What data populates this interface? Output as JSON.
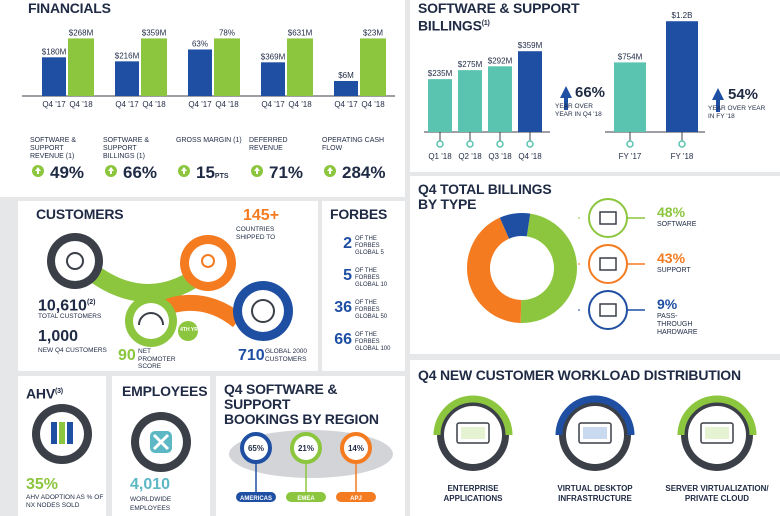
{
  "financials": {
    "title": "FINANCIALS",
    "groups": [
      {
        "name": "SOFTWARE & SUPPORT REVENUE (1)",
        "q4_17_label": "$180M",
        "q4_18_label": "$268M",
        "q4_17": 180,
        "q4_18": 268,
        "growth": "49%",
        "growth_unit": ""
      },
      {
        "name": "SOFTWARE & SUPPORT BILLINGS (1)",
        "q4_17_label": "$216M",
        "q4_18_label": "$359M",
        "q4_17": 216,
        "q4_18": 359,
        "growth": "66%",
        "growth_unit": ""
      },
      {
        "name": "GROSS MARGIN (1)",
        "q4_17_label": "63%",
        "q4_18_label": "78%",
        "q4_17": 63,
        "q4_18": 78,
        "growth": "15",
        "growth_unit": "PTS"
      },
      {
        "name": "DEFERRED REVENUE",
        "q4_17_label": "$369M",
        "q4_18_label": "$631M",
        "q4_17": 369,
        "q4_18": 631,
        "growth": "71%",
        "growth_unit": ""
      },
      {
        "name": "OPERATING CASH FLOW",
        "q4_17_label": "$6M",
        "q4_18_label": "$23M",
        "q4_17": 6,
        "q4_18": 23,
        "growth": "284%",
        "growth_unit": ""
      }
    ],
    "x_labels": [
      "Q4 '17",
      "Q4 '18"
    ]
  },
  "billings": {
    "title_line1": "SOFTWARE & SUPPORT",
    "title_line2": "BILLINGS",
    "title_sup": "(1)",
    "quarters": [
      {
        "label": "Q1 '18",
        "value": 235,
        "value_label": "$235M"
      },
      {
        "label": "Q2 '18",
        "value": 275,
        "value_label": "$275M"
      },
      {
        "label": "Q3 '18",
        "value": 292,
        "value_label": "$292M"
      },
      {
        "label": "Q4 '18",
        "value": 359,
        "value_label": "$359M"
      }
    ],
    "quarter_growth": "66%",
    "quarter_growth_text": "YEAR OVER YEAR IN Q4 '18",
    "years": [
      {
        "label": "FY '17",
        "value": 754,
        "value_label": "$754M"
      },
      {
        "label": "FY '18",
        "value": 1200,
        "value_label": "$1.2B"
      }
    ],
    "year_growth": "54%",
    "year_growth_text": "YEAR OVER YEAR IN FY '18"
  },
  "customers": {
    "title": "CUSTOMERS",
    "countries": "145+",
    "countries_text": "COUNTRIES SHIPPED TO",
    "total": "10,610",
    "total_sup": "(2)",
    "total_text": "TOTAL CUSTOMERS",
    "new": "1,000",
    "new_text": "NEW Q4 CUSTOMERS",
    "nps": "90",
    "nps_text": "NET PROMOTER SCORE",
    "badge": "4th YR",
    "global": "710",
    "global_text": "GLOBAL 2000 CUSTOMERS"
  },
  "forbes": {
    "title": "FORBES",
    "items": [
      {
        "num": "2",
        "text": "OF THE FORBES GLOBAL 5"
      },
      {
        "num": "5",
        "text": "OF THE FORBES GLOBAL 10"
      },
      {
        "num": "36",
        "text": "OF THE FORBES GLOBAL 50"
      },
      {
        "num": "66",
        "text": "OF THE FORBES GLOBAL 100"
      }
    ]
  },
  "billing_type": {
    "title_line1": "Q4 TOTAL BILLINGS",
    "title_line2": "BY TYPE",
    "slices": [
      {
        "name": "SOFTWARE",
        "value": 48,
        "label": "48%",
        "color": "#8cc63f"
      },
      {
        "name": "SUPPORT",
        "value": 43,
        "label": "43%",
        "color": "#f47b20"
      },
      {
        "name": "PASS-THROUGH HARDWARE",
        "value": 9,
        "label": "9%",
        "color": "#1f4fa3"
      }
    ]
  },
  "ahv": {
    "title": "AHV",
    "title_sup": "(3)",
    "pct": "35%",
    "text": "AHV ADOPTION AS % OF NX NODES SOLD"
  },
  "employees": {
    "title": "EMPLOYEES",
    "count": "4,010",
    "text": "WORLDWIDE EMPLOYEES"
  },
  "bookings": {
    "title_line1": "Q4 SOFTWARE & SUPPORT",
    "title_line2": "BOOKINGS BY REGION",
    "regions": [
      {
        "name": "AMERICAS",
        "value": 65,
        "label": "65%",
        "color": "#1f4fa3"
      },
      {
        "name": "EMEA",
        "value": 21,
        "label": "21%",
        "color": "#8cc63f"
      },
      {
        "name": "APJ",
        "value": 14,
        "label": "14%",
        "color": "#f47b20"
      }
    ]
  },
  "workload": {
    "title": "Q4 NEW CUSTOMER WORKLOAD DISTRIBUTION",
    "items": [
      {
        "line1": "ENTERPRISE",
        "line2": "APPLICATIONS",
        "color": "#8cc63f"
      },
      {
        "line1": "VIRTUAL DESKTOP",
        "line2": "INFRASTRUCTURE",
        "color": "#1f4fa3"
      },
      {
        "line1": "SERVER VIRTUALIZATION/",
        "line2": "PRIVATE CLOUD",
        "color": "#8cc63f"
      }
    ]
  },
  "chart_data": [
    {
      "type": "bar",
      "title": "FINANCIALS",
      "categories": [
        "SOFTWARE & SUPPORT REVENUE",
        "SOFTWARE & SUPPORT BILLINGS",
        "GROSS MARGIN",
        "DEFERRED REVENUE",
        "OPERATING CASH FLOW"
      ],
      "series": [
        {
          "name": "Q4 '17",
          "values": [
            180,
            216,
            63,
            369,
            6
          ]
        },
        {
          "name": "Q4 '18",
          "values": [
            268,
            359,
            78,
            631,
            23
          ]
        }
      ]
    },
    {
      "type": "bar",
      "title": "SOFTWARE & SUPPORT BILLINGS",
      "categories": [
        "Q1 '18",
        "Q2 '18",
        "Q3 '18",
        "Q4 '18"
      ],
      "values": [
        235,
        275,
        292,
        359
      ]
    },
    {
      "type": "bar",
      "categories": [
        "FY '17",
        "FY '18"
      ],
      "values": [
        754,
        1200
      ]
    },
    {
      "type": "pie",
      "title": "Q4 TOTAL BILLINGS BY TYPE",
      "categories": [
        "SOFTWARE",
        "SUPPORT",
        "PASS-THROUGH HARDWARE"
      ],
      "values": [
        48,
        43,
        9
      ]
    },
    {
      "type": "pie",
      "title": "Q4 SOFTWARE & SUPPORT BOOKINGS BY REGION",
      "categories": [
        "AMERICAS",
        "EMEA",
        "APJ"
      ],
      "values": [
        65,
        21,
        14
      ]
    }
  ]
}
